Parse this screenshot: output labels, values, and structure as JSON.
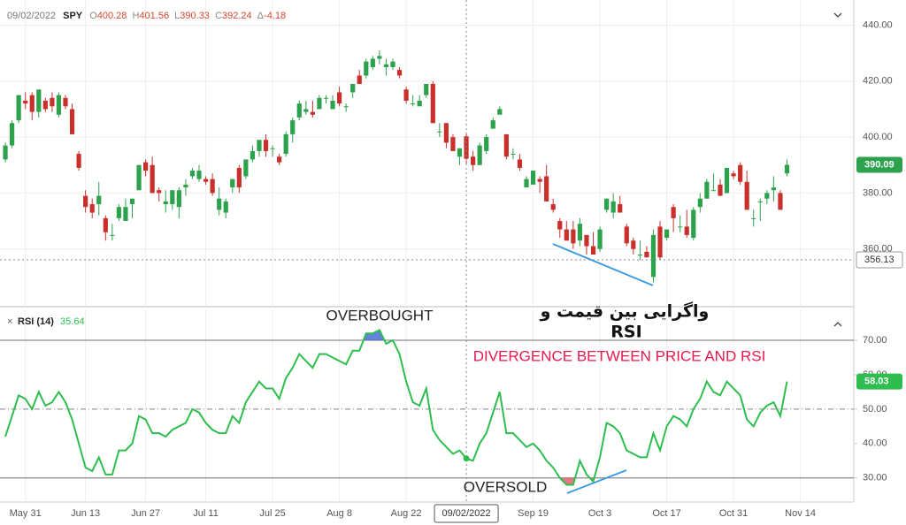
{
  "chart_data": [
    {
      "type": "candlestick",
      "title": "SPY",
      "up_color": "#2ca24d",
      "down_color": "#c9302c",
      "ohlc_labels": [
        "O",
        "H",
        "L",
        "C",
        "Δ"
      ],
      "change": -4.18,
      "open": [
        392,
        397,
        406,
        413,
        415,
        409,
        413,
        414,
        408,
        414,
        410,
        394,
        379,
        376,
        376,
        371,
        365,
        371,
        370,
        376,
        381,
        391,
        390,
        381,
        376,
        376,
        375,
        382,
        386,
        385,
        385,
        385,
        374,
        373,
        382,
        389,
        386,
        392,
        395,
        399,
        396,
        393,
        394,
        401,
        407,
        409,
        409,
        410,
        414,
        410,
        416,
        411,
        416,
        422,
        422,
        425,
        428,
        425,
        425,
        424,
        417,
        412,
        411,
        415,
        419,
        402,
        405,
        400,
        393,
        400.28,
        393,
        390,
        395,
        403,
        408,
        401,
        394,
        392,
        382,
        383,
        385,
        386,
        376,
        370,
        367,
        367,
        363,
        365,
        361,
        360,
        374,
        373,
        376,
        368,
        363,
        358,
        359,
        350,
        368,
        364,
        375,
        368,
        368,
        364,
        375,
        378,
        381,
        383,
        380,
        387,
        390,
        384,
        371,
        377,
        378,
        381,
        380,
        387
      ],
      "high": [
        398,
        406,
        415,
        416,
        416,
        417,
        414,
        416,
        416,
        415,
        412,
        395,
        381,
        378,
        384,
        372,
        369,
        376,
        378,
        378,
        390,
        392,
        393,
        382,
        381,
        381,
        382,
        385,
        389,
        390,
        386,
        387,
        382,
        378,
        385,
        390,
        392,
        397,
        399,
        401,
        397,
        394,
        402,
        407,
        413,
        413,
        413,
        415,
        415,
        415,
        418,
        412,
        419,
        424,
        428,
        429,
        431,
        428,
        428,
        425,
        418,
        415,
        415,
        419,
        420,
        405,
        405,
        401,
        396,
        401.56,
        395,
        398,
        401,
        407,
        411,
        401,
        396,
        394,
        386,
        388,
        386,
        390,
        378,
        371,
        370,
        370,
        371,
        365,
        366,
        368,
        378,
        380,
        379,
        369,
        364,
        363,
        361,
        367,
        370,
        367,
        376,
        372,
        374,
        375,
        380,
        385,
        387,
        385,
        389,
        388,
        391,
        388,
        374,
        378,
        381,
        386,
        381,
        392
      ],
      "low": [
        391,
        396,
        405,
        410,
        406,
        407,
        409,
        409,
        407,
        410,
        401,
        388,
        373,
        371,
        372,
        363,
        363,
        370,
        370,
        371,
        381,
        386,
        380,
        377,
        373,
        374,
        371,
        379,
        385,
        384,
        383,
        379,
        372,
        371,
        380,
        380,
        385,
        391,
        393,
        393,
        393,
        390,
        393,
        398,
        406,
        408,
        407,
        410,
        412,
        410,
        411,
        409,
        414,
        419,
        421,
        424,
        426,
        422,
        424,
        421,
        412,
        411,
        411,
        414,
        405,
        400,
        396,
        395,
        390,
        390.33,
        388,
        390,
        394,
        403,
        408,
        392,
        392,
        388,
        382,
        383,
        380,
        377,
        373,
        364,
        363,
        360,
        361,
        358,
        358,
        359,
        373,
        371,
        373,
        361,
        358,
        356,
        357,
        348,
        356,
        363,
        366,
        366,
        364,
        363,
        373,
        378,
        381,
        379,
        380,
        385,
        383,
        374,
        368,
        370,
        376,
        377,
        374,
        386
      ],
      "close": [
        397,
        405,
        415,
        412,
        409,
        417,
        410,
        411,
        415,
        411,
        401,
        389,
        375,
        373,
        379,
        366,
        365,
        375,
        375,
        378,
        390,
        388,
        380,
        380,
        377,
        381,
        381,
        383,
        388,
        388,
        384,
        380,
        378,
        377,
        385,
        382,
        392,
        395,
        399,
        395,
        396,
        391,
        401,
        406,
        412,
        410,
        408,
        414,
        414,
        413,
        412,
        411,
        419,
        419,
        427,
        428,
        429,
        426,
        427,
        422,
        413,
        412,
        413,
        419,
        405,
        402,
        398,
        395,
        396,
        392.24,
        390,
        397,
        400,
        406,
        410,
        393,
        394,
        389,
        385,
        388,
        384,
        377,
        374,
        367,
        363,
        362,
        369,
        361,
        358,
        367,
        378,
        377,
        373,
        362,
        360,
        358,
        357,
        365,
        357,
        367,
        371,
        368,
        365,
        374,
        378,
        384,
        381,
        379,
        389,
        386,
        384,
        374,
        371,
        377,
        380,
        382,
        374,
        390.09
      ],
      "xlim": [
        -0.8,
        127
      ],
      "xticks": [
        {
          "value": 3,
          "label": "May 31"
        },
        {
          "value": 12,
          "label": "Jun 13"
        },
        {
          "value": 21,
          "label": "Jun 27"
        },
        {
          "value": 30,
          "label": "Jul 11"
        },
        {
          "value": 40,
          "label": "Jul 25"
        },
        {
          "value": 50,
          "label": "Aug 8"
        },
        {
          "value": 60,
          "label": "Aug 22"
        },
        {
          "value": 79,
          "label": "Sep 19"
        },
        {
          "value": 89,
          "label": "Oct 3"
        },
        {
          "value": 99,
          "label": "Oct 17"
        },
        {
          "value": 109,
          "label": "Oct 31"
        },
        {
          "value": 119,
          "label": "Nov 14"
        }
      ],
      "ylim": [
        340,
        449
      ],
      "yticks": [
        {
          "value": 360,
          "label": "360.00"
        },
        {
          "value": 380,
          "label": "380.00"
        },
        {
          "value": 400,
          "label": "400.00"
        },
        {
          "value": 420,
          "label": "420.00"
        },
        {
          "value": 440,
          "label": "440.00"
        }
      ],
      "grid": true,
      "crosshair": {
        "x": 69,
        "date_label": "09/02/2022",
        "price": 356.13
      }
    },
    {
      "type": "line",
      "name": "RSI (14)",
      "color": "#2ebd4f",
      "values": [
        42,
        48,
        54,
        53,
        50,
        55,
        51,
        52,
        55,
        52,
        47,
        40,
        33,
        32,
        36,
        31,
        31,
        38,
        38,
        40,
        48,
        47,
        43,
        43,
        42,
        44,
        45,
        46,
        50,
        49,
        46,
        44,
        43,
        43,
        48,
        46,
        52,
        55,
        58,
        56,
        56,
        53,
        59,
        62,
        66,
        64,
        62,
        66,
        66,
        65,
        64,
        63,
        67,
        67,
        72,
        72,
        73,
        69,
        70,
        66,
        58,
        52,
        51,
        56,
        44,
        41,
        39,
        37,
        38,
        35.64,
        35,
        40,
        43,
        49,
        55,
        43,
        43,
        41,
        39,
        40,
        38,
        35,
        33,
        30,
        28,
        28,
        35,
        31,
        29,
        36,
        46,
        45,
        43,
        38,
        37,
        36,
        36,
        43,
        38,
        45,
        48,
        47,
        45,
        50,
        53,
        58,
        55,
        54,
        58,
        56,
        54,
        47,
        45,
        49,
        51,
        52,
        48,
        58.03
      ],
      "ylim": [
        23,
        79
      ],
      "yticks": [
        {
          "value": 30,
          "label": "30.00"
        },
        {
          "value": 40,
          "label": "40.00"
        },
        {
          "value": 50,
          "label": "50.00"
        },
        {
          "value": 60,
          "label": "60.00"
        },
        {
          "value": 70,
          "label": "70.00"
        }
      ],
      "levels": {
        "upper": 70,
        "middle": 50,
        "lower": 30
      },
      "upper_fill": "#4a6cd4",
      "lower_fill": "#e0606a",
      "annotations": {
        "overbought": "OVERBOUGHT",
        "oversold": "OVERSOLD",
        "divergence": "DIVERGENCE BETWEEN PRICE AND RSI",
        "divergence_fa": [
          "واگرایی بین قیمت و",
          "RSI"
        ]
      }
    }
  ]
}
